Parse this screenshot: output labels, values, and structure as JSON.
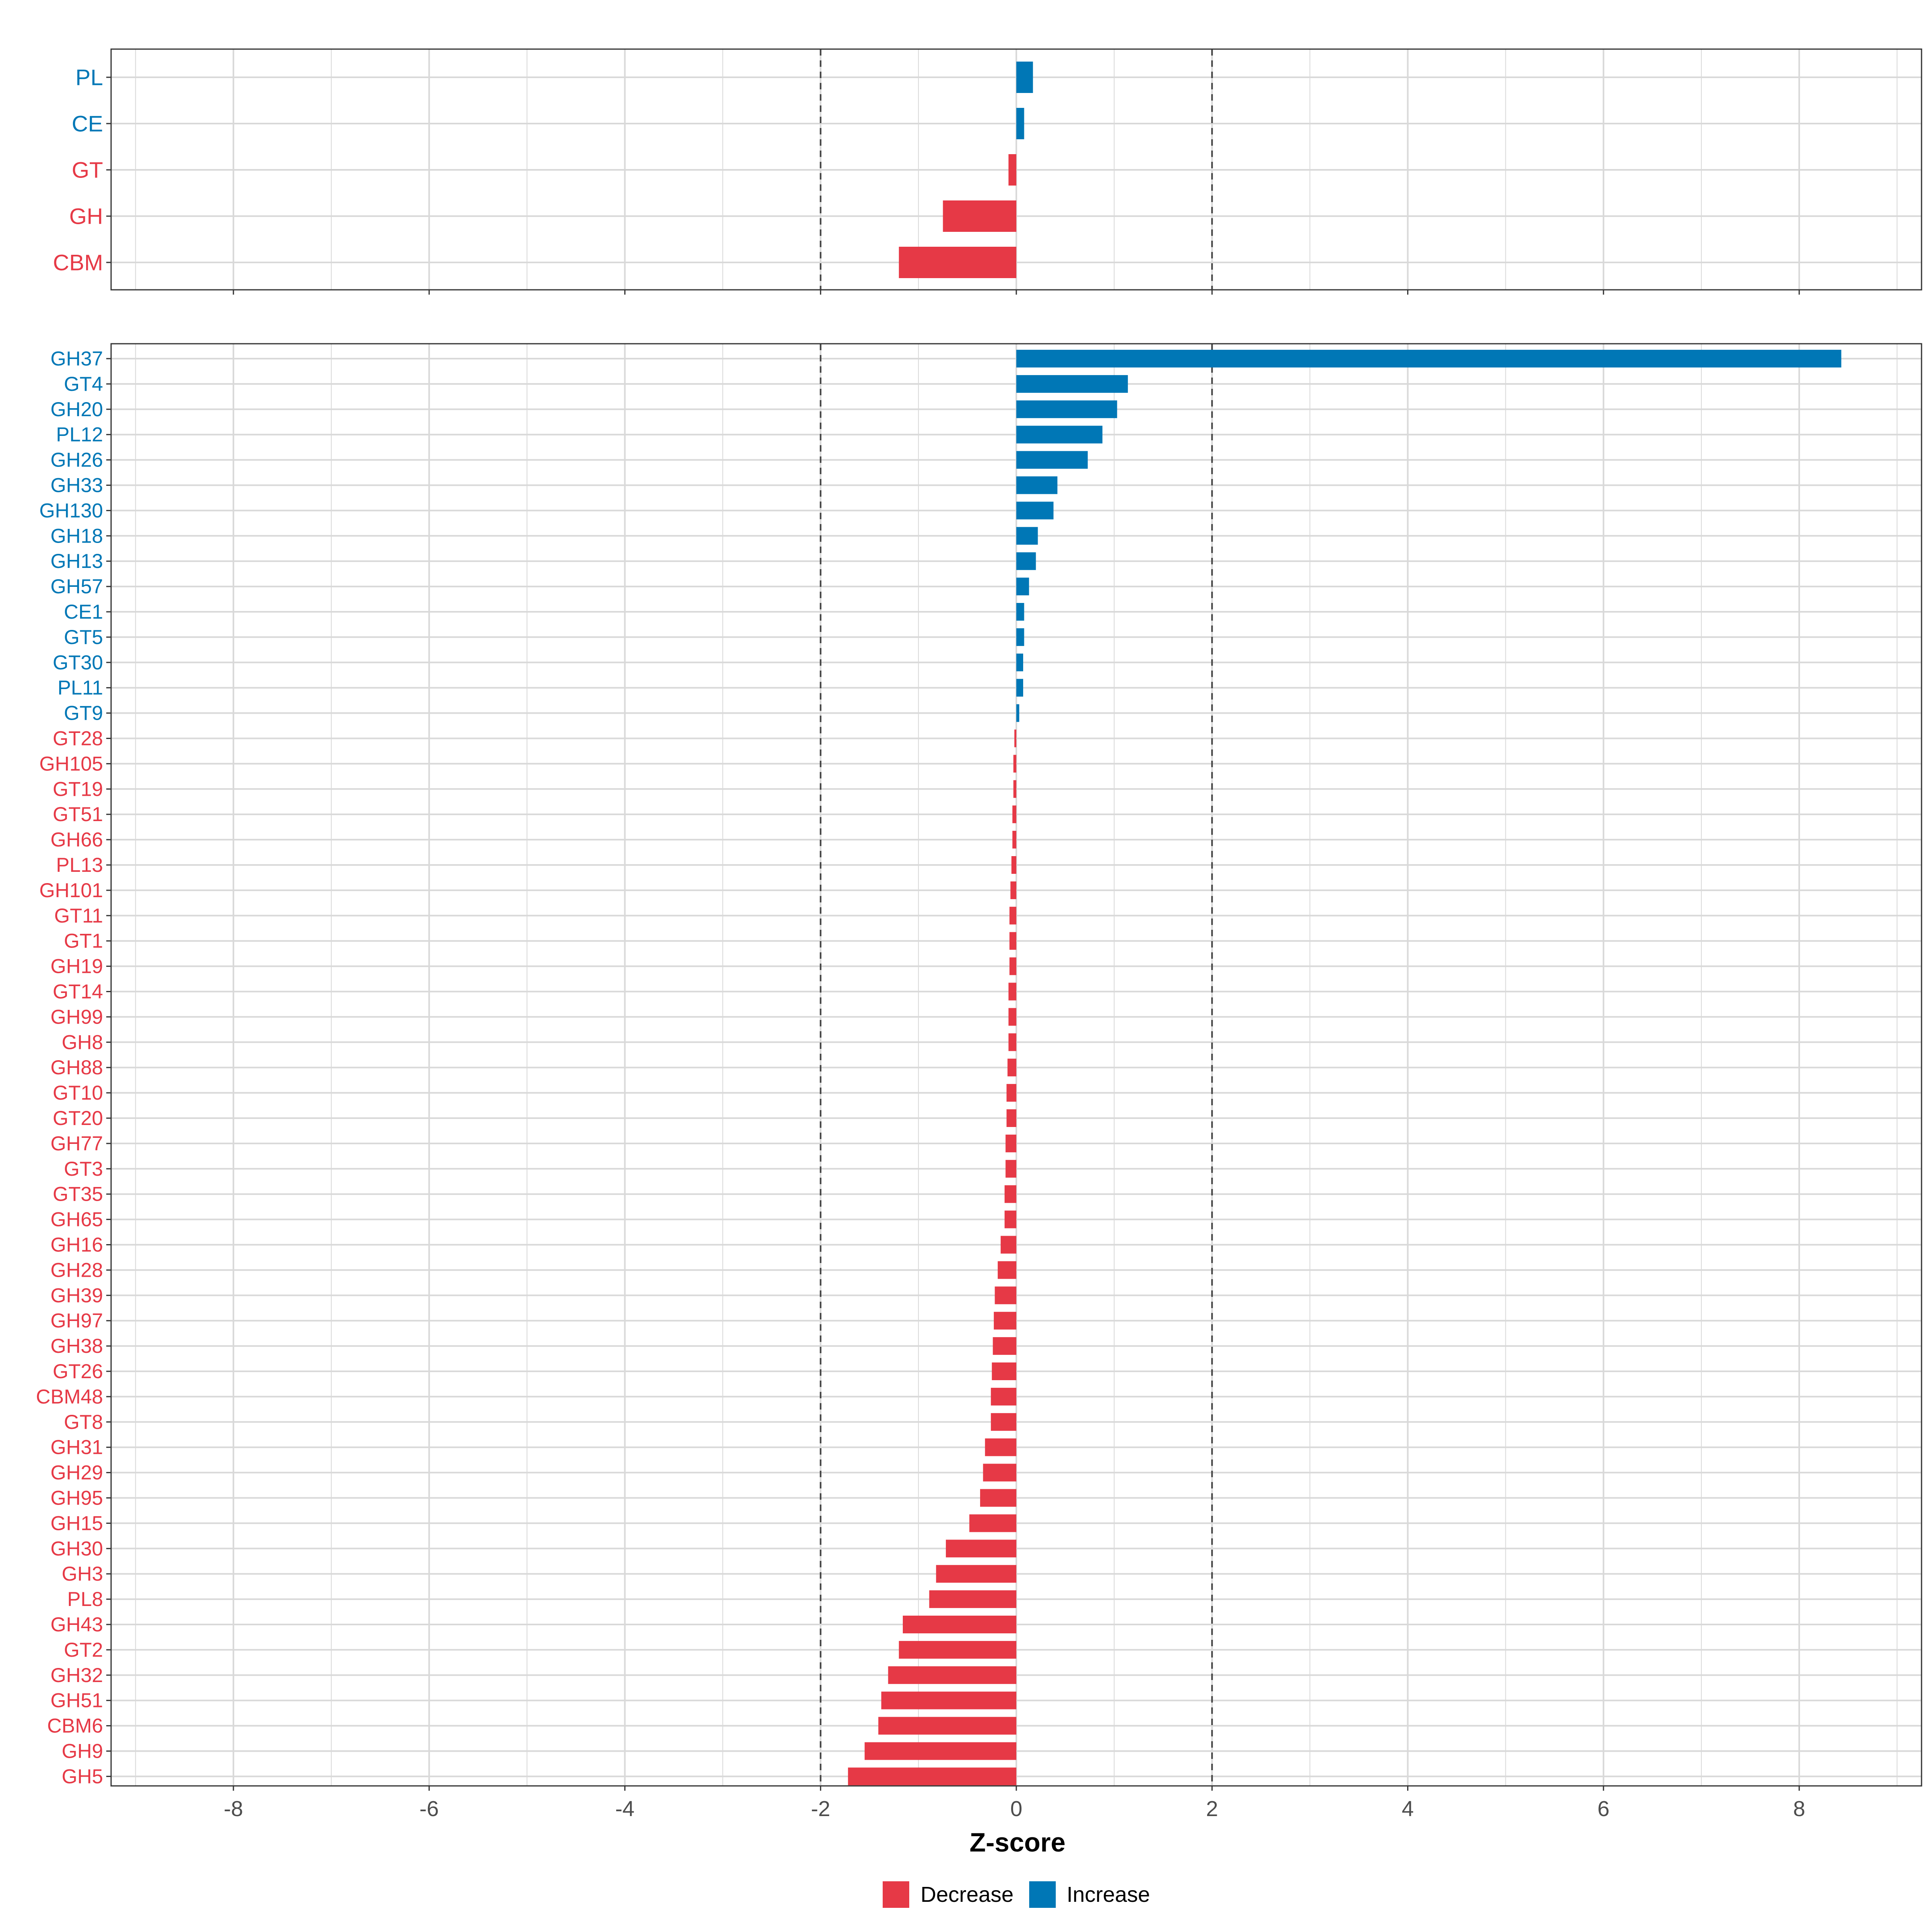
{
  "chart_data": [
    {
      "type": "bar",
      "orientation": "horizontal",
      "panel": "top",
      "title": "",
      "xlabel": "",
      "ylabel": "",
      "xlim": [
        -9.25,
        9.25
      ],
      "xticks": [
        -8,
        -6,
        -4,
        -2,
        0,
        2,
        4,
        6,
        8
      ],
      "show_tick_labels": false,
      "reference_lines": [
        -2,
        2
      ],
      "grid": true,
      "categories": [
        "PL",
        "CE",
        "GT",
        "GH",
        "CBM"
      ],
      "values": [
        0.17,
        0.08,
        -0.08,
        -0.75,
        -1.2
      ],
      "groups": [
        "Increase",
        "Increase",
        "Decrease",
        "Decrease",
        "Decrease"
      ]
    },
    {
      "type": "bar",
      "orientation": "horizontal",
      "panel": "bottom",
      "title": "",
      "xlabel": "Z-score",
      "ylabel": "",
      "xlim": [
        -9.25,
        9.25
      ],
      "xticks": [
        -8,
        -6,
        -4,
        -2,
        0,
        2,
        4,
        6,
        8
      ],
      "tick_labels": [
        "-8",
        "-6",
        "-4",
        "-2",
        "0",
        "2",
        "4",
        "6",
        "8"
      ],
      "show_tick_labels": true,
      "reference_lines": [
        -2,
        2
      ],
      "grid": true,
      "categories": [
        "GH37",
        "GT4",
        "GH20",
        "PL12",
        "GH26",
        "GH33",
        "GH130",
        "GH18",
        "GH13",
        "GH57",
        "CE1",
        "GT5",
        "GT30",
        "PL11",
        "GT9",
        "GT28",
        "GH105",
        "GT19",
        "GT51",
        "GH66",
        "PL13",
        "GH101",
        "GT11",
        "GT1",
        "GH19",
        "GT14",
        "GH99",
        "GH8",
        "GH88",
        "GT10",
        "GT20",
        "GH77",
        "GT3",
        "GT35",
        "GH65",
        "GH16",
        "GH28",
        "GH39",
        "GH97",
        "GH38",
        "GT26",
        "CBM48",
        "GT8",
        "GH31",
        "GH29",
        "GH95",
        "GH15",
        "GH30",
        "GH3",
        "PL8",
        "GH43",
        "GT2",
        "GH32",
        "GH51",
        "CBM6",
        "GH9",
        "GH5"
      ],
      "values": [
        8.43,
        1.14,
        1.03,
        0.88,
        0.73,
        0.42,
        0.38,
        0.22,
        0.2,
        0.13,
        0.08,
        0.08,
        0.07,
        0.07,
        0.03,
        -0.02,
        -0.03,
        -0.03,
        -0.04,
        -0.04,
        -0.05,
        -0.06,
        -0.07,
        -0.07,
        -0.07,
        -0.08,
        -0.08,
        -0.08,
        -0.09,
        -0.1,
        -0.1,
        -0.11,
        -0.11,
        -0.12,
        -0.12,
        -0.16,
        -0.19,
        -0.22,
        -0.23,
        -0.24,
        -0.25,
        -0.26,
        -0.26,
        -0.32,
        -0.34,
        -0.37,
        -0.48,
        -0.72,
        -0.82,
        -0.89,
        -1.16,
        -1.2,
        -1.31,
        -1.38,
        -1.41,
        -1.55,
        -1.72
      ],
      "groups": [
        "Increase",
        "Increase",
        "Increase",
        "Increase",
        "Increase",
        "Increase",
        "Increase",
        "Increase",
        "Increase",
        "Increase",
        "Increase",
        "Increase",
        "Increase",
        "Increase",
        "Increase",
        "Decrease",
        "Decrease",
        "Decrease",
        "Decrease",
        "Decrease",
        "Decrease",
        "Decrease",
        "Decrease",
        "Decrease",
        "Decrease",
        "Decrease",
        "Decrease",
        "Decrease",
        "Decrease",
        "Decrease",
        "Decrease",
        "Decrease",
        "Decrease",
        "Decrease",
        "Decrease",
        "Decrease",
        "Decrease",
        "Decrease",
        "Decrease",
        "Decrease",
        "Decrease",
        "Decrease",
        "Decrease",
        "Decrease",
        "Decrease",
        "Decrease",
        "Decrease",
        "Decrease",
        "Decrease",
        "Decrease",
        "Decrease",
        "Decrease",
        "Decrease",
        "Decrease",
        "Decrease",
        "Decrease",
        "Decrease"
      ]
    }
  ],
  "legend": {
    "placement": "bottom",
    "items": [
      {
        "label": "Decrease",
        "color": "#e63946"
      },
      {
        "label": "Increase",
        "color": "#0077b6"
      }
    ]
  },
  "colors": {
    "Decrease": "#e63946",
    "Increase": "#0077b6",
    "grid": "#d9d9d9",
    "panel_border": "#333333",
    "reference_line": "#444444",
    "tick_text": "#4d4d4d"
  }
}
